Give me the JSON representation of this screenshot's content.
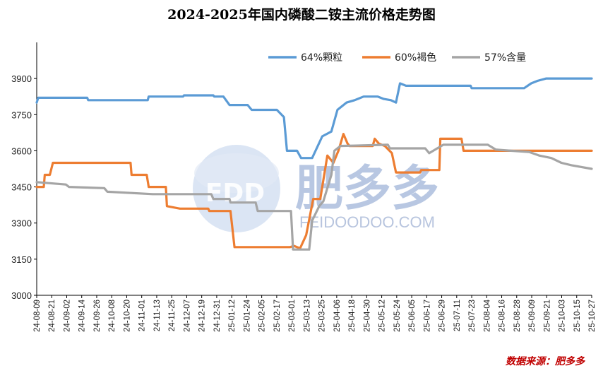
{
  "chart_data": {
    "type": "line",
    "title": "2024-2025年国内磷酸二铵主流价格走势图",
    "ylim": [
      3000,
      4050
    ],
    "yticks": [
      3000,
      3150,
      3300,
      3450,
      3600,
      3750,
      3900
    ],
    "categories": [
      "24-08-09",
      "24-08-21",
      "24-09-02",
      "24-09-14",
      "24-09-26",
      "24-10-08",
      "24-10-20",
      "24-11-01",
      "24-11-13",
      "24-11-25",
      "24-12-07",
      "24-12-19",
      "24-12-31",
      "25-01-12",
      "25-01-24",
      "25-02-05",
      "25-02-17",
      "25-03-01",
      "25-03-13",
      "25-03-25",
      "25-04-06",
      "25-04-18",
      "25-04-30",
      "25-05-12",
      "25-05-24",
      "25-06-05",
      "25-06-17",
      "25-06-29",
      "25-07-11",
      "25-07-23",
      "25-08-04",
      "25-08-16",
      "25-08-28",
      "25-09-09",
      "25-09-21",
      "25-10-03",
      "25-10-15",
      "25-10-27"
    ],
    "legend_position": "top-right",
    "series": [
      {
        "name": "64%颗粒",
        "color": "#5b9bd5",
        "points": [
          [
            0,
            3800
          ],
          [
            0.15,
            3820
          ],
          [
            5,
            3820
          ],
          [
            5.1,
            3810
          ],
          [
            11,
            3810
          ],
          [
            11.1,
            3825
          ],
          [
            14.5,
            3825
          ],
          [
            14.6,
            3830
          ],
          [
            17.5,
            3830
          ],
          [
            17.6,
            3825
          ],
          [
            18.5,
            3825
          ],
          [
            19.1,
            3790
          ],
          [
            20.9,
            3790
          ],
          [
            21.3,
            3770
          ],
          [
            23.8,
            3770
          ],
          [
            24.5,
            3740
          ],
          [
            24.8,
            3600
          ],
          [
            25.8,
            3600
          ],
          [
            26.2,
            3570
          ],
          [
            27.3,
            3570
          ],
          [
            28.3,
            3660
          ],
          [
            29.2,
            3680
          ],
          [
            29.8,
            3770
          ],
          [
            30.7,
            3800
          ],
          [
            31.5,
            3810
          ],
          [
            32.4,
            3825
          ],
          [
            33.8,
            3825
          ],
          [
            34.4,
            3815
          ],
          [
            35.1,
            3810
          ],
          [
            35.6,
            3800
          ],
          [
            36,
            3880
          ],
          [
            36.6,
            3870
          ],
          [
            43,
            3870
          ],
          [
            43.1,
            3860
          ],
          [
            48.3,
            3860
          ],
          [
            49,
            3880
          ],
          [
            49.6,
            3890
          ],
          [
            50.5,
            3900
          ],
          [
            55,
            3900
          ]
        ]
      },
      {
        "name": "60%褐色",
        "color": "#ed7d31",
        "points": [
          [
            0,
            3450
          ],
          [
            0.7,
            3450
          ],
          [
            0.8,
            3500
          ],
          [
            1.3,
            3500
          ],
          [
            1.6,
            3550
          ],
          [
            9.3,
            3550
          ],
          [
            9.4,
            3500
          ],
          [
            10.9,
            3500
          ],
          [
            11.1,
            3450
          ],
          [
            12.8,
            3450
          ],
          [
            12.9,
            3370
          ],
          [
            14.2,
            3360
          ],
          [
            17,
            3360
          ],
          [
            17.1,
            3350
          ],
          [
            19.2,
            3350
          ],
          [
            19.6,
            3200
          ],
          [
            25.1,
            3200
          ],
          [
            25.5,
            3205
          ],
          [
            26.1,
            3195
          ],
          [
            26.7,
            3250
          ],
          [
            27.4,
            3400
          ],
          [
            28.1,
            3400
          ],
          [
            28.8,
            3580
          ],
          [
            29.4,
            3550
          ],
          [
            29.9,
            3600
          ],
          [
            30.4,
            3670
          ],
          [
            30.8,
            3630
          ],
          [
            31,
            3620
          ],
          [
            33.3,
            3620
          ],
          [
            33.5,
            3650
          ],
          [
            33.9,
            3630
          ],
          [
            34.5,
            3620
          ],
          [
            35.2,
            3590
          ],
          [
            35.6,
            3510
          ],
          [
            36.3,
            3510
          ],
          [
            38,
            3510
          ],
          [
            38.1,
            3520
          ],
          [
            39.9,
            3520
          ],
          [
            40,
            3650
          ],
          [
            42.1,
            3650
          ],
          [
            42.3,
            3600
          ],
          [
            55,
            3600
          ]
        ]
      },
      {
        "name": "57%含量",
        "color": "#a5a5a5",
        "points": [
          [
            0,
            3470
          ],
          [
            2.9,
            3460
          ],
          [
            3.2,
            3450
          ],
          [
            6.7,
            3445
          ],
          [
            7,
            3430
          ],
          [
            11.5,
            3420
          ],
          [
            17.3,
            3420
          ],
          [
            17.5,
            3400
          ],
          [
            19.1,
            3400
          ],
          [
            19.2,
            3385
          ],
          [
            21.7,
            3385
          ],
          [
            21.9,
            3350
          ],
          [
            25.2,
            3350
          ],
          [
            25.4,
            3190
          ],
          [
            27,
            3190
          ],
          [
            27.3,
            3310
          ],
          [
            28,
            3370
          ],
          [
            28.4,
            3390
          ],
          [
            29.2,
            3500
          ],
          [
            29.5,
            3600
          ],
          [
            30.1,
            3620
          ],
          [
            34.8,
            3625
          ],
          [
            35,
            3610
          ],
          [
            38.5,
            3610
          ],
          [
            38.9,
            3590
          ],
          [
            40.3,
            3625
          ],
          [
            44.7,
            3625
          ],
          [
            45.5,
            3605
          ],
          [
            47,
            3600
          ],
          [
            48.8,
            3595
          ],
          [
            49.8,
            3580
          ],
          [
            51,
            3570
          ],
          [
            52,
            3550
          ],
          [
            53,
            3540
          ],
          [
            55,
            3525
          ]
        ]
      }
    ]
  },
  "watermark": {
    "brand": "FDD",
    "name": "肥多多",
    "url": "FEIDOODOO.COM"
  },
  "source_note": "数据来源：肥多多"
}
